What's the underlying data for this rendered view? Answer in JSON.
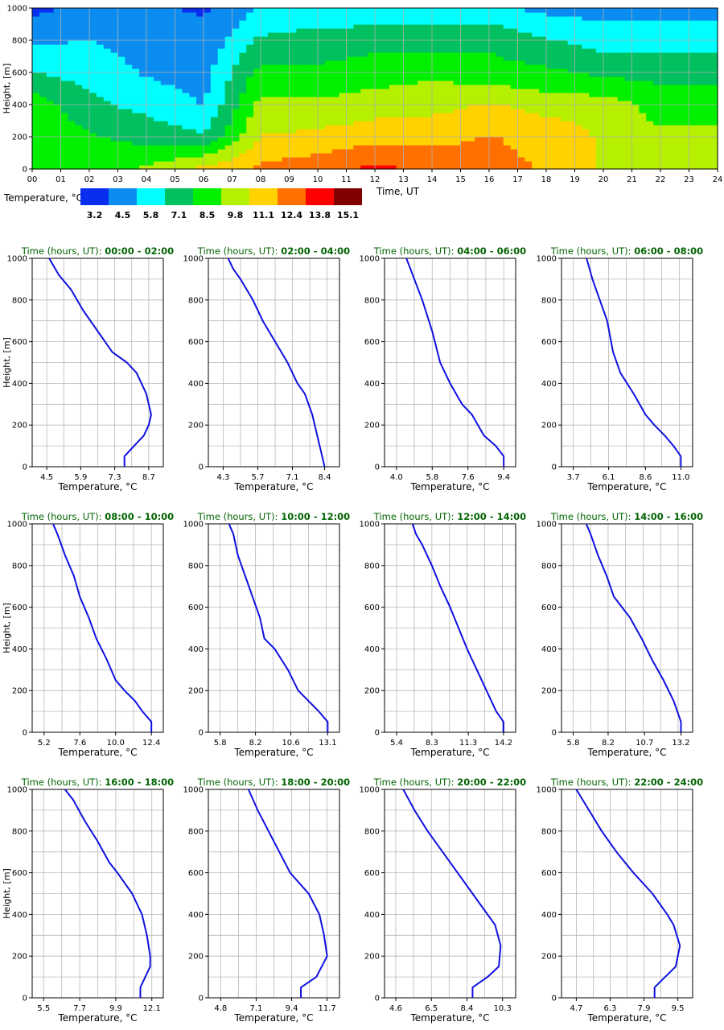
{
  "heatmap": {
    "ylabel": "Height, [m]",
    "xlabel": "Time, UT",
    "x_ticks": [
      "00",
      "01",
      "02",
      "03",
      "04",
      "05",
      "06",
      "07",
      "08",
      "09",
      "10",
      "11",
      "12",
      "13",
      "14",
      "15",
      "16",
      "17",
      "18",
      "19",
      "20",
      "21",
      "22",
      "23",
      "24"
    ],
    "y_ticks": [
      "0",
      "200",
      "400",
      "600",
      "800",
      "1000"
    ],
    "colorbar_label": "Temperature, °C",
    "colorbar_ticks": [
      "3.2",
      "4.5",
      "5.8",
      "7.1",
      "8.5",
      "9.8",
      "11.1",
      "12.4",
      "13.8",
      "15.1"
    ],
    "colors": [
      "#0a2ef0",
      "#0a8cf0",
      "#00ffff",
      "#00c060",
      "#00f000",
      "#b4f000",
      "#ffd200",
      "#ff7000",
      "#ff0000",
      "#800000"
    ]
  },
  "panel_title_prefix": "Time (hours, UT):",
  "profile_xlabel": "Temperature, °C",
  "profile_ylabel": "Height, [m]",
  "profile_y_ticks": [
    "0",
    "200",
    "400",
    "600",
    "800",
    "1000"
  ],
  "line_color": "#1010e0",
  "title_color": "#006400",
  "chart_data": [
    {
      "type": "heatmap",
      "x_range": [
        0,
        24
      ],
      "y_range": [
        0,
        1000
      ],
      "value_levels": [
        3.2,
        4.5,
        5.8,
        7.1,
        8.5,
        9.8,
        11.1,
        12.4,
        13.8,
        15.1
      ],
      "x": [
        0,
        2,
        4,
        6,
        8,
        10,
        12,
        14,
        16,
        18,
        20,
        22,
        24
      ],
      "heights": [
        0,
        200,
        400,
        600,
        800,
        1000
      ],
      "z": [
        [
          7.9,
          8.6,
          8.7,
          6.4,
          4.9,
          3.5
        ],
        [
          8.4,
          8.0,
          6.8,
          6.0,
          5.2,
          4.3
        ],
        [
          9.4,
          7.3,
          6.0,
          5.0,
          4.6,
          4.0
        ],
        [
          10.8,
          6.7,
          5.1,
          4.6,
          4.2,
          3.7
        ],
        [
          12.1,
          10.5,
          9.5,
          8.3,
          6.7,
          5.2
        ],
        [
          12.6,
          10.8,
          9.4,
          8.1,
          6.9,
          5.8
        ],
        [
          13.5,
          11.3,
          9.8,
          8.5,
          7.3,
          5.4
        ],
        [
          12.8,
          11.4,
          10.0,
          8.9,
          7.2,
          5.8
        ],
        [
          12.0,
          11.8,
          10.6,
          8.3,
          7.5,
          5.5
        ],
        [
          11.7,
          11.5,
          9.9,
          8.1,
          6.6,
          4.8
        ],
        [
          10.3,
          10.2,
          9.8,
          7.5,
          5.9,
          4.6
        ],
        [
          9.5,
          9.4,
          8.6,
          7.3,
          5.9,
          4.7
        ],
        [
          9.5,
          9.4,
          8.6,
          7.3,
          5.9,
          4.7
        ]
      ]
    },
    {
      "type": "line",
      "title": "00:00 - 02:00",
      "x_ticks": [
        4.5,
        5.9,
        7.3,
        8.7
      ],
      "xlim": [
        3.9,
        9.3
      ],
      "ylim": [
        0,
        1000
      ],
      "points": [
        [
          7.7,
          0
        ],
        [
          7.7,
          50
        ],
        [
          8.1,
          100
        ],
        [
          8.5,
          150
        ],
        [
          8.7,
          200
        ],
        [
          8.8,
          250
        ],
        [
          8.7,
          300
        ],
        [
          8.6,
          350
        ],
        [
          8.2,
          450
        ],
        [
          7.8,
          500
        ],
        [
          7.2,
          550
        ],
        [
          6.6,
          650
        ],
        [
          6.0,
          750
        ],
        [
          5.5,
          850
        ],
        [
          5.0,
          920
        ],
        [
          4.6,
          1000
        ]
      ]
    },
    {
      "type": "line",
      "title": "02:00 - 04:00",
      "x_ticks": [
        4.3,
        5.7,
        7.1,
        8.4
      ],
      "xlim": [
        3.7,
        9.0
      ],
      "ylim": [
        0,
        1000
      ],
      "points": [
        [
          8.4,
          0
        ],
        [
          8.3,
          50
        ],
        [
          8.1,
          150
        ],
        [
          7.9,
          250
        ],
        [
          7.6,
          350
        ],
        [
          7.3,
          400
        ],
        [
          6.9,
          500
        ],
        [
          6.4,
          600
        ],
        [
          5.9,
          700
        ],
        [
          5.5,
          800
        ],
        [
          5.0,
          900
        ],
        [
          4.7,
          950
        ],
        [
          4.5,
          1000
        ]
      ]
    },
    {
      "type": "line",
      "title": "04:00 - 06:00",
      "x_ticks": [
        4.0,
        5.8,
        7.6,
        9.4
      ],
      "xlim": [
        3.4,
        10.0
      ],
      "ylim": [
        0,
        1000
      ],
      "points": [
        [
          9.4,
          0
        ],
        [
          9.4,
          50
        ],
        [
          9.0,
          100
        ],
        [
          8.4,
          150
        ],
        [
          7.8,
          250
        ],
        [
          7.3,
          300
        ],
        [
          6.7,
          400
        ],
        [
          6.2,
          500
        ],
        [
          5.8,
          650
        ],
        [
          5.3,
          800
        ],
        [
          4.7,
          950
        ],
        [
          4.5,
          1000
        ]
      ]
    },
    {
      "type": "line",
      "title": "06:00 - 08:00",
      "x_ticks": [
        3.7,
        6.1,
        8.6,
        11.0
      ],
      "xlim": [
        2.9,
        11.8
      ],
      "ylim": [
        0,
        1000
      ],
      "points": [
        [
          11.0,
          0
        ],
        [
          11.0,
          50
        ],
        [
          10.5,
          100
        ],
        [
          9.9,
          150
        ],
        [
          9.2,
          200
        ],
        [
          8.6,
          250
        ],
        [
          7.8,
          350
        ],
        [
          6.9,
          450
        ],
        [
          6.4,
          550
        ],
        [
          6.0,
          700
        ],
        [
          5.5,
          800
        ],
        [
          5.0,
          900
        ],
        [
          4.6,
          1000
        ]
      ]
    },
    {
      "type": "line",
      "title": "08:00 - 10:00",
      "x_ticks": [
        5.2,
        7.6,
        10.0,
        12.4
      ],
      "xlim": [
        4.4,
        13.2
      ],
      "ylim": [
        0,
        1000
      ],
      "points": [
        [
          12.4,
          0
        ],
        [
          12.4,
          50
        ],
        [
          11.8,
          100
        ],
        [
          11.3,
          150
        ],
        [
          10.6,
          200
        ],
        [
          10.0,
          250
        ],
        [
          9.4,
          350
        ],
        [
          8.7,
          450
        ],
        [
          8.2,
          550
        ],
        [
          7.6,
          650
        ],
        [
          7.2,
          750
        ],
        [
          6.6,
          850
        ],
        [
          6.1,
          950
        ],
        [
          5.8,
          1000
        ]
      ]
    },
    {
      "type": "line",
      "title": "10:00 - 12:00",
      "x_ticks": [
        5.8,
        8.2,
        10.6,
        13.1
      ],
      "xlim": [
        5.0,
        13.9
      ],
      "ylim": [
        0,
        1000
      ],
      "points": [
        [
          13.1,
          0
        ],
        [
          13.1,
          50
        ],
        [
          12.5,
          100
        ],
        [
          11.8,
          150
        ],
        [
          11.1,
          200
        ],
        [
          10.4,
          300
        ],
        [
          9.5,
          400
        ],
        [
          8.8,
          450
        ],
        [
          8.5,
          550
        ],
        [
          8.0,
          650
        ],
        [
          7.5,
          750
        ],
        [
          7.0,
          850
        ],
        [
          6.7,
          950
        ],
        [
          6.4,
          1000
        ]
      ]
    },
    {
      "type": "line",
      "title": "12:00 - 14:00",
      "x_ticks": [
        5.4,
        8.3,
        11.3,
        14.2
      ],
      "xlim": [
        4.4,
        15.2
      ],
      "ylim": [
        0,
        1000
      ],
      "points": [
        [
          14.2,
          0
        ],
        [
          14.2,
          50
        ],
        [
          13.6,
          100
        ],
        [
          12.8,
          200
        ],
        [
          12.0,
          300
        ],
        [
          11.2,
          400
        ],
        [
          10.5,
          500
        ],
        [
          9.8,
          600
        ],
        [
          9.0,
          700
        ],
        [
          8.3,
          800
        ],
        [
          7.5,
          900
        ],
        [
          7.0,
          950
        ],
        [
          6.7,
          1000
        ]
      ]
    },
    {
      "type": "line",
      "title": "14:00 - 16:00",
      "x_ticks": [
        5.8,
        8.2,
        10.7,
        13.2
      ],
      "xlim": [
        5.0,
        14.0
      ],
      "ylim": [
        0,
        1000
      ],
      "points": [
        [
          13.2,
          0
        ],
        [
          13.2,
          50
        ],
        [
          12.7,
          150
        ],
        [
          12.0,
          250
        ],
        [
          11.2,
          350
        ],
        [
          10.5,
          450
        ],
        [
          9.7,
          550
        ],
        [
          8.6,
          650
        ],
        [
          8.1,
          750
        ],
        [
          7.5,
          850
        ],
        [
          7.0,
          950
        ],
        [
          6.7,
          1000
        ]
      ]
    },
    {
      "type": "line",
      "title": "16:00 - 18:00",
      "x_ticks": [
        5.5,
        7.7,
        9.9,
        12.1
      ],
      "xlim": [
        4.8,
        12.8
      ],
      "ylim": [
        0,
        1000
      ],
      "points": [
        [
          11.4,
          0
        ],
        [
          11.4,
          50
        ],
        [
          11.7,
          100
        ],
        [
          12.0,
          150
        ],
        [
          12.0,
          200
        ],
        [
          11.8,
          300
        ],
        [
          11.5,
          400
        ],
        [
          10.9,
          500
        ],
        [
          10.0,
          600
        ],
        [
          9.5,
          650
        ],
        [
          8.8,
          750
        ],
        [
          8.0,
          850
        ],
        [
          7.3,
          950
        ],
        [
          6.8,
          1000
        ]
      ]
    },
    {
      "type": "line",
      "title": "18:00 - 20:00",
      "x_ticks": [
        4.8,
        7.1,
        9.4,
        11.7
      ],
      "xlim": [
        4.0,
        12.5
      ],
      "ylim": [
        0,
        1000
      ],
      "points": [
        [
          10.0,
          0
        ],
        [
          10.0,
          50
        ],
        [
          11.0,
          100
        ],
        [
          11.7,
          200
        ],
        [
          11.5,
          300
        ],
        [
          11.2,
          400
        ],
        [
          10.5,
          500
        ],
        [
          9.3,
          600
        ],
        [
          8.6,
          700
        ],
        [
          7.9,
          800
        ],
        [
          7.2,
          900
        ],
        [
          6.6,
          1000
        ]
      ]
    },
    {
      "type": "line",
      "title": "20:00 - 22:00",
      "x_ticks": [
        4.6,
        6.5,
        8.4,
        10.3
      ],
      "xlim": [
        4.0,
        11.0
      ],
      "ylim": [
        0,
        1000
      ],
      "points": [
        [
          8.7,
          0
        ],
        [
          8.7,
          50
        ],
        [
          9.5,
          100
        ],
        [
          10.1,
          150
        ],
        [
          10.2,
          250
        ],
        [
          9.9,
          350
        ],
        [
          9.5,
          400
        ],
        [
          8.7,
          500
        ],
        [
          7.9,
          600
        ],
        [
          7.1,
          700
        ],
        [
          6.3,
          800
        ],
        [
          5.6,
          900
        ],
        [
          5.0,
          1000
        ]
      ]
    },
    {
      "type": "line",
      "title": "22:00 - 24:00",
      "x_ticks": [
        4.7,
        6.3,
        7.9,
        9.5
      ],
      "xlim": [
        4.0,
        10.2
      ],
      "ylim": [
        0,
        1000
      ],
      "points": [
        [
          8.4,
          0
        ],
        [
          8.4,
          50
        ],
        [
          8.9,
          100
        ],
        [
          9.4,
          150
        ],
        [
          9.6,
          250
        ],
        [
          9.3,
          350
        ],
        [
          9.0,
          400
        ],
        [
          8.3,
          500
        ],
        [
          7.4,
          600
        ],
        [
          6.6,
          700
        ],
        [
          5.9,
          800
        ],
        [
          5.3,
          900
        ],
        [
          4.7,
          1000
        ]
      ]
    }
  ]
}
